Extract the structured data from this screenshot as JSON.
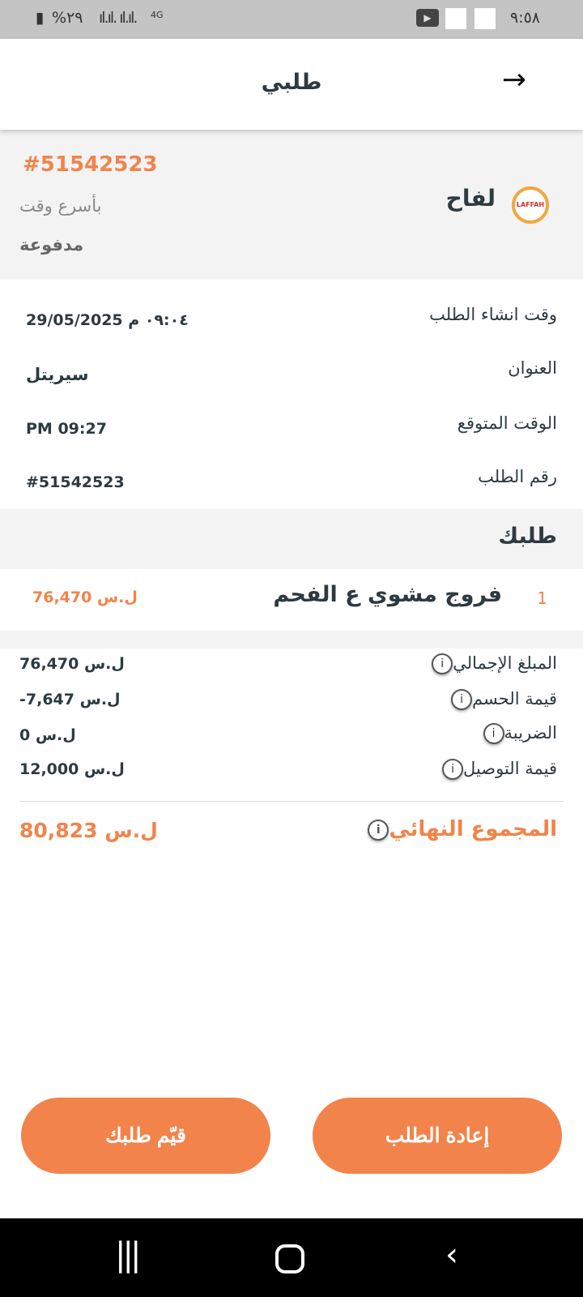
{
  "status_bar": {
    "time": "٩:٥٨",
    "battery": "%٢٩",
    "network": "4G",
    "icons": [
      "youtube-icon",
      "notification-icon",
      "notification-icon"
    ]
  },
  "header": {
    "title": "طلبي",
    "back_icon": "arrow-right-icon"
  },
  "order_summary": {
    "order_number": "#51542523",
    "restaurant": "لفاح",
    "logo_text": "LAFFAH",
    "delivery_type": "بأسرع وقت",
    "payment_status": "مدفوعة"
  },
  "details": [
    {
      "label": "وقت انشاء الطلب",
      "value": "29/05/2025 ٠٩:٠٤ م"
    },
    {
      "label": "العنوان",
      "value": "سيريتل"
    },
    {
      "label": "الوقت المتوقع",
      "value": "PM 09:27"
    },
    {
      "label": "رقم الطلب",
      "value": "#51542523"
    }
  ],
  "your_order": {
    "heading": "طلبك",
    "items": [
      {
        "qty": "1",
        "name": "فروج مشوي ع الفحم",
        "price": "76,470 ل.س"
      }
    ]
  },
  "totals": [
    {
      "label": "المبلغ الإجمالي",
      "value": "76,470 ل.س"
    },
    {
      "label": "قيمة الحسم",
      "value": "-7,647 ل.س"
    },
    {
      "label": "الضريبة",
      "value": "0 ل.س"
    },
    {
      "label": "قيمة التوصيل",
      "value": "12,000 ل.س"
    }
  ],
  "grand_total": {
    "label": "المجموع النهائي",
    "value": "80,823 ل.س"
  },
  "buttons": {
    "reorder": "إعادة الطلب",
    "rate": "قيّم طلبك"
  },
  "colors": {
    "accent": "#f2834a",
    "status_bar": "#c4c4c4"
  }
}
